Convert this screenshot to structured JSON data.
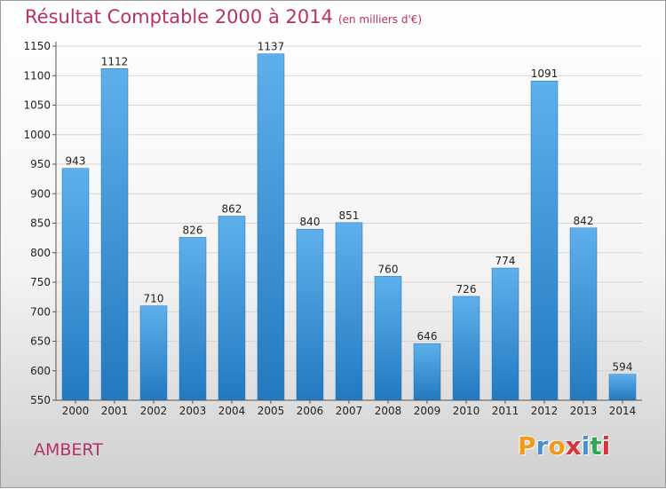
{
  "header": {
    "title": "Résultat Comptable 2000 à 2014",
    "subtitle": "(en milliers d'€)"
  },
  "footer": {
    "city": "AMBERT",
    "logo_letters": [
      "P",
      "r",
      "o",
      "x",
      "i",
      "t",
      "i"
    ],
    "logo_colors": [
      "#f29a1c",
      "#4a8fd3",
      "#f29a1c",
      "#d8343a",
      "#4a8fd3",
      "#2fa84f",
      "#d8343a"
    ]
  },
  "colors": {
    "bar_top": "#5eb0ec",
    "bar_bottom": "#2379bf",
    "grid": "#d6d6d6",
    "axis": "#555555"
  },
  "chart_data": {
    "type": "bar",
    "title": "Résultat Comptable 2000 à 2014",
    "subtitle": "(en milliers d'€)",
    "categories": [
      "2000",
      "2001",
      "2002",
      "2003",
      "2004",
      "2005",
      "2006",
      "2007",
      "2008",
      "2009",
      "2010",
      "2011",
      "2012",
      "2013",
      "2014"
    ],
    "values": [
      943,
      1112,
      710,
      826,
      862,
      1137,
      840,
      851,
      760,
      646,
      726,
      774,
      1091,
      842,
      594
    ],
    "ylim": [
      550,
      1150
    ],
    "yticks": [
      550,
      600,
      650,
      700,
      750,
      800,
      850,
      900,
      950,
      1000,
      1050,
      1100,
      1150
    ],
    "grid": true,
    "legend": "none"
  }
}
